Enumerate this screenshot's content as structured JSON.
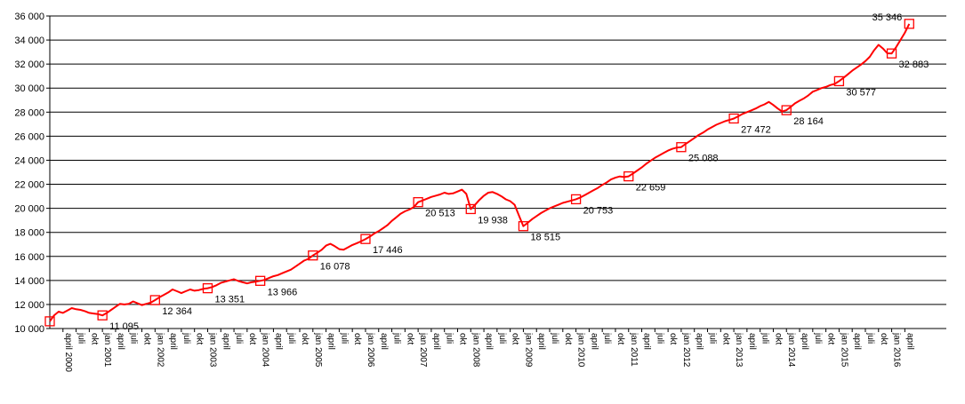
{
  "chart_data": {
    "type": "line",
    "title": "",
    "xlabel": "",
    "ylabel": "",
    "ylim": [
      10000,
      36000
    ],
    "y_ticks": [
      10000,
      12000,
      14000,
      16000,
      18000,
      20000,
      22000,
      24000,
      26000,
      28000,
      30000,
      32000,
      34000,
      36000
    ],
    "y_tick_labels": [
      "10 000",
      "12 000",
      "14 000",
      "16 000",
      "18 000",
      "20 000",
      "22 000",
      "24 000",
      "26 000",
      "28 000",
      "30 000",
      "32 000",
      "34 000",
      "36 000"
    ],
    "grid": "horizontal",
    "line_color": "#ff0000",
    "x_start": "2000-01",
    "x_tick_labels": {
      "first_year": 2000,
      "last_year": 2016,
      "months": [
        "jan",
        "april",
        "juli",
        "okt"
      ]
    },
    "series": [
      {
        "values": [
          10600,
          11100,
          11400,
          11300,
          11500,
          11700,
          11600,
          11550,
          11450,
          11300,
          11250,
          11200,
          11095,
          11300,
          11550,
          11800,
          12050,
          12000,
          12050,
          12250,
          12100,
          11950,
          12050,
          12150,
          12364,
          12600,
          12800,
          13000,
          13250,
          13100,
          12950,
          13100,
          13250,
          13150,
          13200,
          13300,
          13351,
          13450,
          13600,
          13800,
          13900,
          14000,
          14100,
          13950,
          13850,
          13750,
          13850,
          13900,
          13966,
          14050,
          14200,
          14350,
          14450,
          14600,
          14750,
          14900,
          15150,
          15400,
          15650,
          15800,
          16078,
          16300,
          16550,
          16900,
          17050,
          16850,
          16600,
          16550,
          16750,
          16950,
          17100,
          17250,
          17446,
          17650,
          17900,
          18100,
          18350,
          18600,
          18950,
          19250,
          19550,
          19750,
          19900,
          20100,
          20513,
          20650,
          20800,
          20950,
          21050,
          21150,
          21300,
          21200,
          21250,
          21400,
          21550,
          21200,
          19938,
          20300,
          20700,
          21050,
          21300,
          21350,
          21200,
          21000,
          20750,
          20600,
          20300,
          19400,
          18515,
          18800,
          19100,
          19350,
          19600,
          19800,
          20000,
          20150,
          20300,
          20450,
          20550,
          20650,
          20753,
          20900,
          21100,
          21300,
          21500,
          21700,
          21950,
          22150,
          22400,
          22550,
          22650,
          22600,
          22659,
          22900,
          23150,
          23400,
          23700,
          23950,
          24200,
          24400,
          24600,
          24800,
          24950,
          25050,
          25088,
          25350,
          25600,
          25850,
          26100,
          26300,
          26550,
          26750,
          26950,
          27100,
          27250,
          27350,
          27472,
          27650,
          27850,
          28000,
          28150,
          28300,
          28500,
          28650,
          28850,
          28600,
          28300,
          28050,
          28164,
          28450,
          28750,
          28950,
          29150,
          29400,
          29700,
          29850,
          30000,
          30100,
          30250,
          30350,
          30577,
          30850,
          31150,
          31450,
          31700,
          31950,
          32250,
          32600,
          33150,
          33600,
          33300,
          32900,
          32883,
          33400,
          34000,
          34600,
          35346
        ]
      }
    ],
    "markers": [
      {
        "index": 0,
        "value": 10600,
        "label": ""
      },
      {
        "index": 12,
        "value": 11095,
        "label": "11 095"
      },
      {
        "index": 24,
        "value": 12364,
        "label": "12 364"
      },
      {
        "index": 36,
        "value": 13351,
        "label": "13 351"
      },
      {
        "index": 48,
        "value": 13966,
        "label": "13 966"
      },
      {
        "index": 60,
        "value": 16078,
        "label": "16 078"
      },
      {
        "index": 72,
        "value": 17446,
        "label": "17 446"
      },
      {
        "index": 84,
        "value": 20513,
        "label": "20 513"
      },
      {
        "index": 96,
        "value": 19938,
        "label": "19 938"
      },
      {
        "index": 108,
        "value": 18515,
        "label": "18 515"
      },
      {
        "index": 120,
        "value": 20753,
        "label": "20 753"
      },
      {
        "index": 132,
        "value": 22659,
        "label": "22 659"
      },
      {
        "index": 144,
        "value": 25088,
        "label": "25 088"
      },
      {
        "index": 156,
        "value": 27472,
        "label": "27 472"
      },
      {
        "index": 168,
        "value": 28164,
        "label": "28 164"
      },
      {
        "index": 180,
        "value": 30577,
        "label": "30 577"
      },
      {
        "index": 192,
        "value": 32883,
        "label": "32 883"
      },
      {
        "index": 196,
        "value": 35346,
        "label": "35 346"
      }
    ]
  }
}
